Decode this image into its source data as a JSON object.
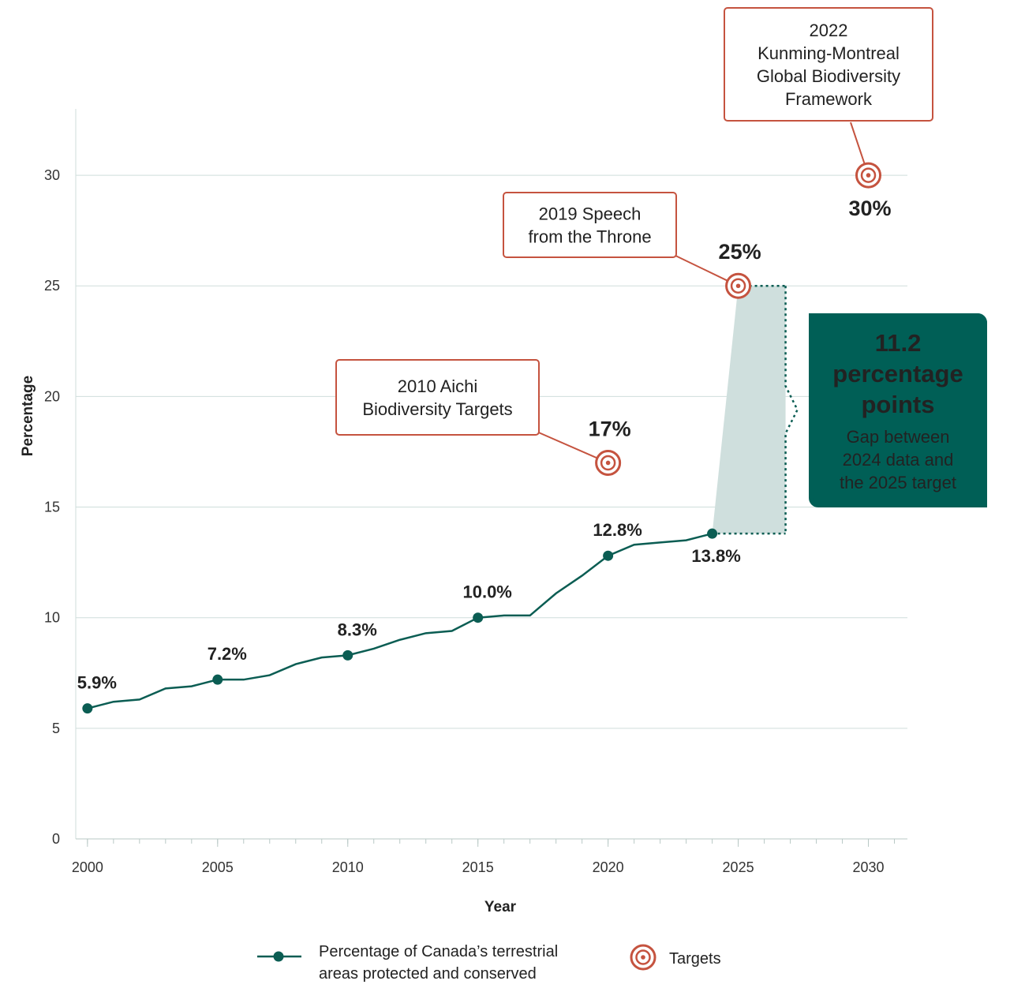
{
  "chart_data": {
    "type": "line",
    "xlabel": "Year",
    "ylabel": "Percentage",
    "xlim": [
      1999.55,
      2031.5
    ],
    "ylim": [
      0,
      33
    ],
    "xticks": [
      2000,
      2005,
      2010,
      2015,
      2020,
      2025,
      2030
    ],
    "yticks": [
      0,
      5,
      10,
      15,
      20,
      25,
      30
    ],
    "grid": true,
    "series": [
      {
        "name": "Percentage of Canada’s terrestrial areas protected and conserved",
        "color": "#0b5d53",
        "x": [
          2000,
          2001,
          2002,
          2003,
          2004,
          2005,
          2006,
          2007,
          2008,
          2009,
          2010,
          2011,
          2012,
          2013,
          2014,
          2015,
          2016,
          2017,
          2018,
          2019,
          2020,
          2021,
          2022,
          2023,
          2024
        ],
        "values": [
          5.9,
          6.2,
          6.3,
          6.8,
          6.9,
          7.2,
          7.2,
          7.4,
          7.9,
          8.2,
          8.3,
          8.6,
          9.0,
          9.3,
          9.4,
          10.0,
          10.1,
          10.1,
          11.1,
          11.9,
          12.8,
          13.3,
          13.4,
          13.5,
          13.8
        ],
        "value_labels": [
          "5.9%",
          null,
          null,
          null,
          null,
          "7.2%",
          null,
          null,
          null,
          null,
          "8.3%",
          null,
          null,
          null,
          null,
          "10.0%",
          null,
          null,
          null,
          null,
          "12.8%",
          null,
          null,
          null,
          "13.8%"
        ]
      },
      {
        "name": "Targets",
        "color": "#c5533f",
        "x": [
          2020,
          2025,
          2030
        ],
        "values": [
          17,
          25,
          30
        ],
        "value_labels": [
          "17%",
          "25%",
          "30%"
        ]
      }
    ],
    "annotations": [
      {
        "lines": [
          "2010 Aichi",
          "Biodiversity Targets"
        ]
      },
      {
        "lines": [
          "2019 Speech",
          "from the Throne"
        ]
      },
      {
        "lines": [
          "2022",
          "Kunming-Montreal",
          "Global Biodiversity",
          "Framework"
        ]
      }
    ],
    "gap_callout": {
      "headline": [
        "11.2",
        "percentage",
        "points"
      ],
      "note": [
        "Gap between",
        "2024 data and",
        "the 2025 target"
      ]
    }
  }
}
